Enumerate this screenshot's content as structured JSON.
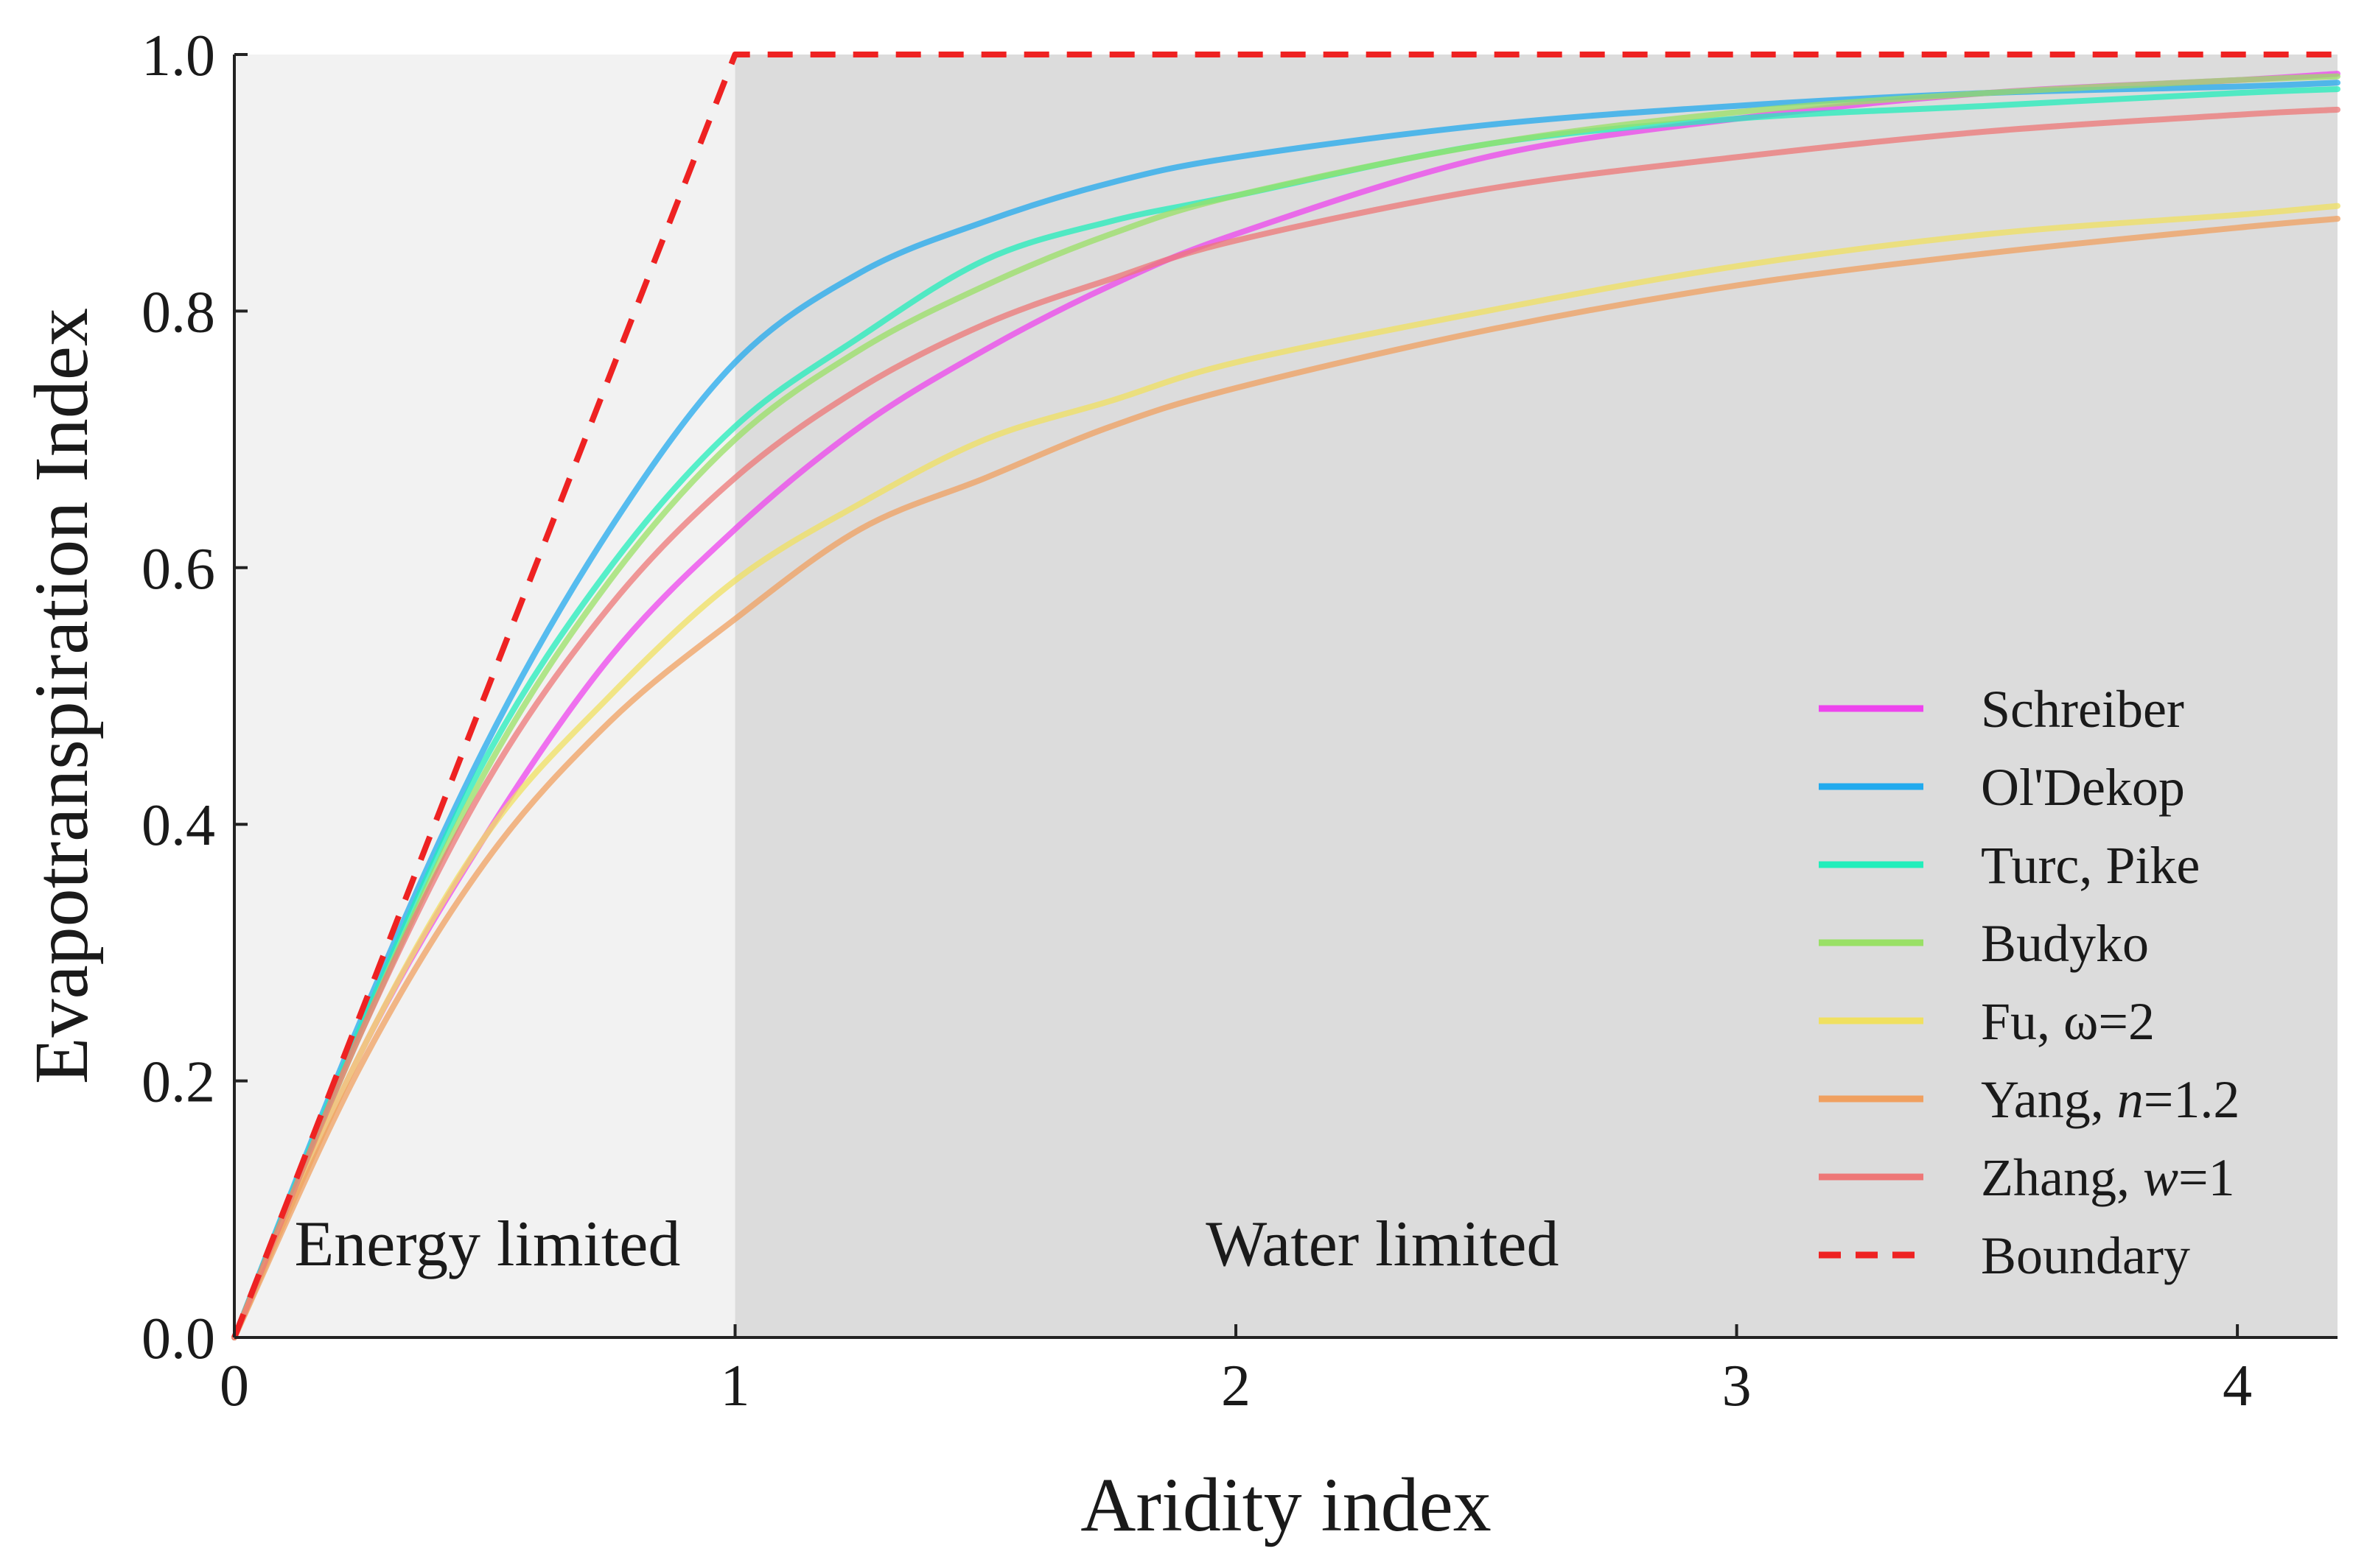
{
  "chart_data": {
    "type": "line",
    "title": "",
    "xlabel": "Aridity index",
    "ylabel": "Evapotranspiration Index",
    "xlim": [
      0,
      4.2
    ],
    "ylim": [
      0,
      1.0
    ],
    "xticks": [
      0,
      1,
      2,
      3,
      4
    ],
    "xtick_labels": [
      "0",
      "1",
      "2",
      "3",
      "4"
    ],
    "yticks": [
      0,
      0.2,
      0.4,
      0.6,
      0.8,
      1.0
    ],
    "ytick_labels": [
      "0.0",
      "0.2",
      "0.4",
      "0.6",
      "0.8",
      "1.0"
    ],
    "regions": [
      {
        "label": "Energy limited",
        "x_range": [
          0,
          1
        ],
        "color": "#f2f2f2"
      },
      {
        "label": "Water limited",
        "x_range": [
          1,
          4.2
        ],
        "color": "#dcdcdc"
      }
    ],
    "legend_position": "bottom-right",
    "x": [
      0,
      0.25,
      0.5,
      0.75,
      1.0,
      1.25,
      1.5,
      1.75,
      2.0,
      2.5,
      3.0,
      3.5,
      4.0,
      4.2
    ],
    "series": [
      {
        "name": "Schreiber",
        "label_main": "Schreiber",
        "label_italic": "",
        "label_suffix": "",
        "color": "#ee44ee",
        "style": "solid",
        "values": [
          0,
          0.22,
          0.39,
          0.53,
          0.63,
          0.71,
          0.77,
          0.82,
          0.86,
          0.92,
          0.95,
          0.97,
          0.98,
          0.985
        ]
      },
      {
        "name": "Ol'Dekop",
        "label_main": "Ol'Dekop",
        "label_italic": "",
        "label_suffix": "",
        "color": "#22aaee",
        "style": "solid",
        "values": [
          0,
          0.245,
          0.46,
          0.63,
          0.76,
          0.83,
          0.87,
          0.9,
          0.92,
          0.945,
          0.96,
          0.97,
          0.975,
          0.978
        ]
      },
      {
        "name": "Turc, Pike",
        "label_main": "Turc, Pike",
        "label_italic": "",
        "label_suffix": "",
        "color": "#22eebb",
        "style": "solid",
        "values": [
          0,
          0.24,
          0.45,
          0.6,
          0.71,
          0.78,
          0.84,
          0.87,
          0.89,
          0.93,
          0.95,
          0.96,
          0.97,
          0.973
        ]
      },
      {
        "name": "Budyko",
        "label_main": "Budyko",
        "label_italic": "",
        "label_suffix": "",
        "color": "#99e066",
        "style": "solid",
        "values": [
          0,
          0.235,
          0.44,
          0.59,
          0.7,
          0.77,
          0.82,
          0.86,
          0.89,
          0.93,
          0.955,
          0.97,
          0.98,
          0.983
        ]
      },
      {
        "name": "Fu, ω=2",
        "label_main": "Fu, ω=2",
        "label_italic": "",
        "label_suffix": "",
        "color": "#f0e060",
        "style": "solid",
        "values": [
          0,
          0.22,
          0.39,
          0.5,
          0.59,
          0.65,
          0.7,
          0.73,
          0.76,
          0.8,
          0.835,
          0.86,
          0.875,
          0.882
        ]
      },
      {
        "name": "Yang, n=1.2",
        "label_main": "Yang, ",
        "label_italic": "n",
        "label_suffix": "=1.2",
        "color": "#f0a060",
        "style": "solid",
        "values": [
          0,
          0.21,
          0.37,
          0.48,
          0.56,
          0.63,
          0.67,
          0.71,
          0.74,
          0.785,
          0.82,
          0.845,
          0.865,
          0.872
        ]
      },
      {
        "name": "Zhang, w=1",
        "label_main": "Zhang, ",
        "label_italic": "w",
        "label_suffix": "=1",
        "color": "#ee7777",
        "style": "solid",
        "values": [
          0,
          0.235,
          0.43,
          0.57,
          0.67,
          0.74,
          0.79,
          0.825,
          0.855,
          0.895,
          0.92,
          0.94,
          0.953,
          0.957
        ]
      },
      {
        "name": "Boundary",
        "label_main": "Boundary",
        "label_italic": "",
        "label_suffix": "",
        "color": "#ee2222",
        "style": "dashed",
        "values": [
          0,
          0.25,
          0.5,
          0.75,
          1.0,
          1.0,
          1.0,
          1.0,
          1.0,
          1.0,
          1.0,
          1.0,
          1.0,
          1.0
        ]
      }
    ]
  }
}
